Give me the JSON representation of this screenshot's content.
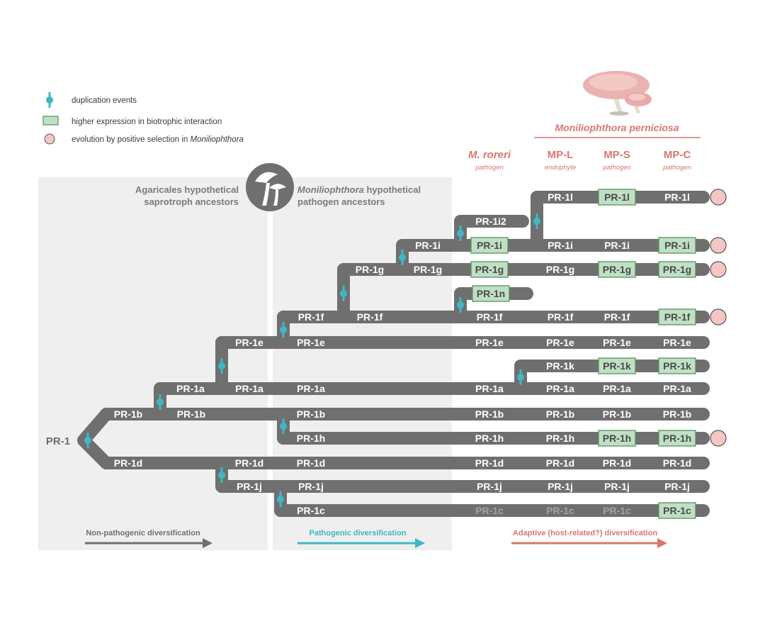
{
  "legend": {
    "duplication": "duplication events",
    "expression": "higher expression in biotrophic interaction",
    "selection_prefix": "evolution by positive selection in ",
    "selection_genus": "Moniliophthora"
  },
  "panels": {
    "agaricales_line1": "Agaricales hypothetical",
    "agaricales_line2": "saprotroph ancestors",
    "monilio_genus": "Moniliophthora",
    "monilio_line1_rest": " hypothetical",
    "monilio_line2": "pathogen ancestors"
  },
  "species_header": "Moniliophthora perniciosa",
  "columns": [
    {
      "head": "M. roreri",
      "sub": "pathogen",
      "italic": true
    },
    {
      "head": "MP-L",
      "sub": "endophyte",
      "italic": false
    },
    {
      "head": "MP-S",
      "sub": "pathogen",
      "italic": false
    },
    {
      "head": "MP-C",
      "sub": "pathogen",
      "italic": false
    }
  ],
  "arrows": {
    "non_pathogenic": "Non-pathogenic diversification",
    "pathogenic": "Pathogenic diversification",
    "adaptive": "Adaptive (host-related?) diversification"
  },
  "root_label": "PR-1",
  "branch_labels": {
    "b1": "PR-1b",
    "b2": "PR-1b",
    "d1": "PR-1d",
    "a1": "PR-1a",
    "a2": "PR-1a",
    "e1": "PR-1e",
    "a3": "PR-1a",
    "d2": "PR-1d",
    "j1": "PR-1j",
    "f1": "PR-1f",
    "e2": "PR-1e",
    "b3": "PR-1b",
    "h1": "PR-1h",
    "d3": "PR-1d",
    "j2": "PR-1j",
    "c1": "PR-1c",
    "g1": "PR-1g",
    "f2": "PR-1f",
    "i1": "PR-1i",
    "g2": "PR-1g",
    "i2x": "PR-1i2",
    "n1": "PR-1n",
    "k1": "PR-1k",
    "l1": "PR-1l"
  },
  "rows": [
    {
      "name": "l",
      "cells": [
        "",
        "PR-1l",
        "PR-1l",
        "PR-1l"
      ],
      "green": [
        false,
        false,
        true,
        false
      ],
      "dim": [
        false,
        false,
        false,
        false
      ],
      "selection": true
    },
    {
      "name": "i",
      "cells": [
        "PR-1i",
        "PR-1i",
        "PR-1i",
        "PR-1i"
      ],
      "green": [
        true,
        false,
        false,
        true
      ],
      "dim": [
        false,
        false,
        false,
        false
      ],
      "selection": true
    },
    {
      "name": "g",
      "cells": [
        "PR-1g",
        "PR-1g",
        "PR-1g",
        "PR-1g"
      ],
      "green": [
        true,
        false,
        true,
        true
      ],
      "dim": [
        false,
        false,
        false,
        false
      ],
      "selection": true
    },
    {
      "name": "f",
      "cells": [
        "PR-1f",
        "PR-1f",
        "PR-1f",
        "PR-1f"
      ],
      "green": [
        false,
        false,
        false,
        true
      ],
      "dim": [
        false,
        false,
        false,
        false
      ],
      "selection": true
    },
    {
      "name": "e",
      "cells": [
        "PR-1e",
        "PR-1e",
        "PR-1e",
        "PR-1e"
      ],
      "green": [
        false,
        false,
        false,
        false
      ],
      "dim": [
        false,
        false,
        false,
        false
      ],
      "selection": false
    },
    {
      "name": "k",
      "cells": [
        "",
        "PR-1k",
        "PR-1k",
        "PR-1k"
      ],
      "green": [
        false,
        false,
        true,
        true
      ],
      "dim": [
        false,
        false,
        false,
        false
      ],
      "selection": false
    },
    {
      "name": "a",
      "cells": [
        "PR-1a",
        "PR-1a",
        "PR-1a",
        "PR-1a"
      ],
      "green": [
        false,
        false,
        false,
        false
      ],
      "dim": [
        false,
        false,
        false,
        false
      ],
      "selection": false
    },
    {
      "name": "b",
      "cells": [
        "PR-1b",
        "PR-1b",
        "PR-1b",
        "PR-1b"
      ],
      "green": [
        false,
        false,
        false,
        false
      ],
      "dim": [
        false,
        false,
        false,
        false
      ],
      "selection": false
    },
    {
      "name": "h",
      "cells": [
        "PR-1h",
        "PR-1h",
        "PR-1h",
        "PR-1h"
      ],
      "green": [
        false,
        false,
        true,
        true
      ],
      "dim": [
        false,
        false,
        false,
        false
      ],
      "selection": true
    },
    {
      "name": "d",
      "cells": [
        "PR-1d",
        "PR-1d",
        "PR-1d",
        "PR-1d"
      ],
      "green": [
        false,
        false,
        false,
        false
      ],
      "dim": [
        false,
        false,
        false,
        false
      ],
      "selection": false
    },
    {
      "name": "j",
      "cells": [
        "PR-1j",
        "PR-1j",
        "PR-1j",
        "PR-1j"
      ],
      "green": [
        false,
        false,
        false,
        false
      ],
      "dim": [
        false,
        false,
        false,
        false
      ],
      "selection": false
    },
    {
      "name": "c",
      "cells": [
        "PR-1c",
        "PR-1c",
        "PR-1c",
        "PR-1c"
      ],
      "green": [
        false,
        false,
        false,
        true
      ],
      "dim": [
        true,
        true,
        true,
        false
      ],
      "selection": false
    }
  ],
  "extra_tips": [
    {
      "name": "i2",
      "label": "PR-1i2",
      "green": false
    },
    {
      "name": "n",
      "label": "PR-1n",
      "green": true
    }
  ],
  "colors": {
    "branch": "#6f6f6f",
    "panel": "#efefef",
    "duplication": "#3fb8c6",
    "green_fill": "#bfe0c4",
    "green_stroke": "#5a8f62",
    "selection_fill": "#f4c6c4",
    "selection_stroke": "#555555",
    "accent": "#d9776e"
  }
}
